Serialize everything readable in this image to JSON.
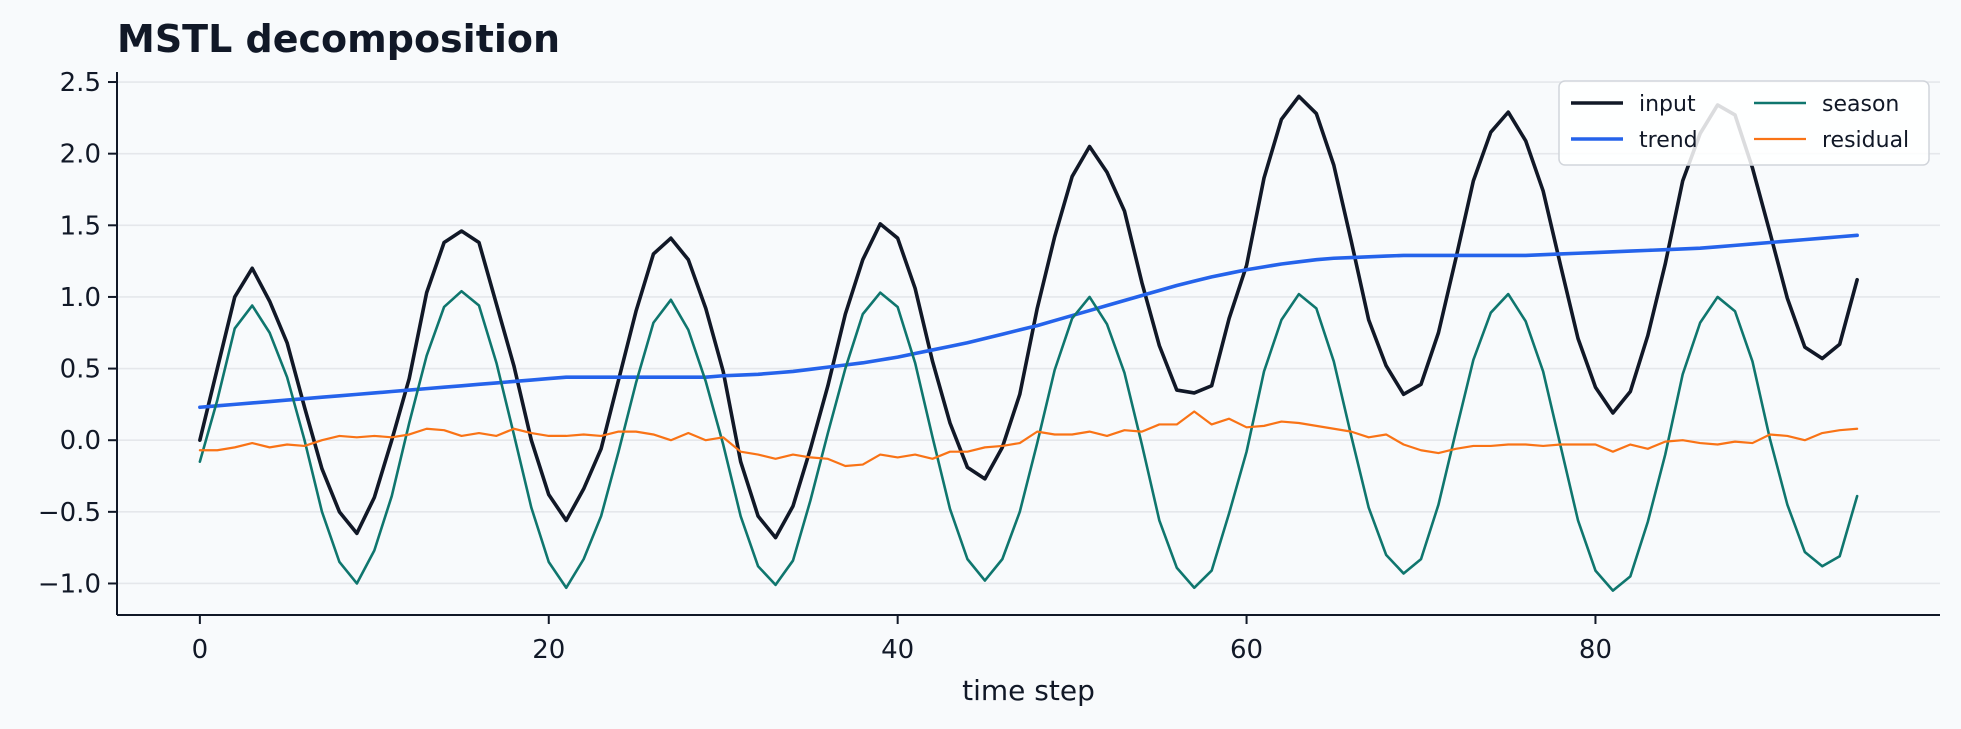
{
  "chart_data": {
    "type": "line",
    "title": "MSTL decomposition",
    "xlabel": "time step",
    "ylabel": "",
    "xlim": [
      -4.75,
      99.75
    ],
    "ylim": [
      -1.22,
      2.57
    ],
    "xticks": [
      0,
      20,
      40,
      60,
      80
    ],
    "yticks": [
      -1.0,
      -0.5,
      0.0,
      0.5,
      1.0,
      1.5,
      2.0,
      2.5
    ],
    "ytick_labels": [
      "−1.0",
      "−0.5",
      "0.0",
      "0.5",
      "1.0",
      "1.5",
      "2.0",
      "2.5"
    ],
    "grid": "horizontal",
    "legend_position": "top-right",
    "legend_columns": 2,
    "x_start": 0,
    "series": [
      {
        "name": "input",
        "color": "#111827",
        "values": [
          0.0,
          0.5,
          1.0,
          1.2,
          0.97,
          0.68,
          0.23,
          -0.2,
          -0.5,
          -0.65,
          -0.4,
          0.0,
          0.43,
          1.03,
          1.38,
          1.46,
          1.38,
          0.95,
          0.52,
          0.0,
          -0.38,
          -0.56,
          -0.34,
          -0.06,
          0.42,
          0.9,
          1.3,
          1.41,
          1.26,
          0.92,
          0.48,
          -0.15,
          -0.53,
          -0.68,
          -0.46,
          -0.06,
          0.38,
          0.88,
          1.26,
          1.51,
          1.41,
          1.06,
          0.55,
          0.12,
          -0.19,
          -0.27,
          -0.05,
          0.32,
          0.92,
          1.42,
          1.84,
          2.05,
          1.87,
          1.6,
          1.1,
          0.66,
          0.35,
          0.33,
          0.38,
          0.85,
          1.22,
          1.83,
          2.24,
          2.4,
          2.28,
          1.92,
          1.39,
          0.84,
          0.52,
          0.32,
          0.39,
          0.75,
          1.27,
          1.81,
          2.15,
          2.29,
          2.09,
          1.74,
          1.22,
          0.71,
          0.37,
          0.19,
          0.34,
          0.73,
          1.23,
          1.81,
          2.14,
          2.34,
          2.27,
          1.9,
          1.45,
          0.99,
          0.65,
          0.57,
          0.67,
          1.12
        ]
      },
      {
        "name": "trend",
        "color": "#2563eb",
        "values": [
          0.23,
          0.24,
          0.25,
          0.26,
          0.27,
          0.28,
          0.29,
          0.3,
          0.31,
          0.32,
          0.33,
          0.34,
          0.35,
          0.36,
          0.37,
          0.38,
          0.39,
          0.4,
          0.41,
          0.42,
          0.43,
          0.44,
          0.44,
          0.44,
          0.44,
          0.44,
          0.44,
          0.44,
          0.44,
          0.44,
          0.45,
          0.455,
          0.46,
          0.47,
          0.48,
          0.495,
          0.51,
          0.525,
          0.54,
          0.56,
          0.58,
          0.605,
          0.63,
          0.655,
          0.68,
          0.71,
          0.74,
          0.77,
          0.8,
          0.835,
          0.87,
          0.905,
          0.94,
          0.975,
          1.01,
          1.045,
          1.08,
          1.11,
          1.14,
          1.165,
          1.19,
          1.21,
          1.23,
          1.245,
          1.26,
          1.27,
          1.275,
          1.28,
          1.285,
          1.29,
          1.29,
          1.29,
          1.29,
          1.29,
          1.29,
          1.29,
          1.29,
          1.295,
          1.3,
          1.305,
          1.31,
          1.315,
          1.32,
          1.325,
          1.33,
          1.335,
          1.34,
          1.35,
          1.36,
          1.37,
          1.38,
          1.39,
          1.4,
          1.41,
          1.42,
          1.43
        ]
      },
      {
        "name": "season",
        "color": "#0f766e",
        "values": [
          -0.15,
          0.28,
          0.78,
          0.94,
          0.75,
          0.44,
          0.0,
          -0.5,
          -0.85,
          -1.0,
          -0.77,
          -0.39,
          0.12,
          0.59,
          0.93,
          1.04,
          0.94,
          0.54,
          0.04,
          -0.47,
          -0.85,
          -1.03,
          -0.83,
          -0.53,
          -0.08,
          0.4,
          0.82,
          0.98,
          0.77,
          0.41,
          -0.03,
          -0.53,
          -0.88,
          -1.01,
          -0.84,
          -0.42,
          0.05,
          0.5,
          0.88,
          1.03,
          0.93,
          0.54,
          0.02,
          -0.48,
          -0.83,
          -0.98,
          -0.83,
          -0.5,
          -0.02,
          0.49,
          0.85,
          1.0,
          0.81,
          0.47,
          -0.03,
          -0.56,
          -0.89,
          -1.03,
          -0.91,
          -0.51,
          -0.08,
          0.48,
          0.84,
          1.02,
          0.92,
          0.55,
          0.03,
          -0.47,
          -0.8,
          -0.93,
          -0.83,
          -0.45,
          0.06,
          0.56,
          0.89,
          1.02,
          0.83,
          0.48,
          -0.04,
          -0.56,
          -0.91,
          -1.05,
          -0.95,
          -0.57,
          -0.1,
          0.46,
          0.82,
          1.0,
          0.9,
          0.55,
          0.01,
          -0.45,
          -0.78,
          -0.88,
          -0.81,
          -0.39
        ]
      },
      {
        "name": "residual",
        "color": "#f97316",
        "values": [
          -0.07,
          -0.07,
          -0.05,
          -0.02,
          -0.05,
          -0.03,
          -0.04,
          0.0,
          0.03,
          0.02,
          0.03,
          0.02,
          0.04,
          0.08,
          0.07,
          0.03,
          0.05,
          0.03,
          0.08,
          0.05,
          0.03,
          0.03,
          0.04,
          0.03,
          0.06,
          0.06,
          0.04,
          0.0,
          0.05,
          0.0,
          0.02,
          -0.08,
          -0.1,
          -0.13,
          -0.1,
          -0.12,
          -0.13,
          -0.18,
          -0.17,
          -0.1,
          -0.12,
          -0.1,
          -0.13,
          -0.08,
          -0.08,
          -0.05,
          -0.04,
          -0.02,
          0.06,
          0.04,
          0.04,
          0.06,
          0.03,
          0.07,
          0.06,
          0.11,
          0.11,
          0.2,
          0.11,
          0.15,
          0.09,
          0.1,
          0.13,
          0.12,
          0.1,
          0.08,
          0.06,
          0.02,
          0.04,
          -0.03,
          -0.07,
          -0.09,
          -0.06,
          -0.04,
          -0.04,
          -0.03,
          -0.03,
          -0.04,
          -0.03,
          -0.03,
          -0.03,
          -0.08,
          -0.03,
          -0.06,
          -0.01,
          0.0,
          -0.02,
          -0.03,
          -0.01,
          -0.02,
          0.04,
          0.03,
          0.0,
          0.05,
          0.07,
          0.08
        ]
      }
    ]
  }
}
